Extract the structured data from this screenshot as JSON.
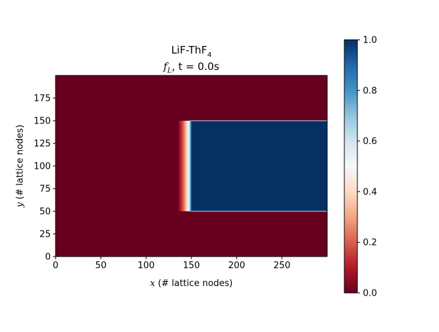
{
  "chart_data": {
    "type": "heatmap",
    "title_line1": {
      "text": "LiF-ThF",
      "subscript": "4"
    },
    "title_line2": {
      "var": "f",
      "var_subscript": "L",
      "rest": ", t = 0.0s"
    },
    "xlabel": {
      "var": "x",
      "rest": " (# lattice nodes)"
    },
    "ylabel": {
      "var": "y",
      "rest": " (# lattice nodes)"
    },
    "xlim": [
      0,
      300
    ],
    "ylim": [
      0,
      200
    ],
    "x_ticks": [
      "0",
      "50",
      "100",
      "150",
      "200",
      "250"
    ],
    "y_ticks": [
      "0",
      "25",
      "50",
      "75",
      "100",
      "125",
      "150",
      "175"
    ],
    "colorbar": {
      "colormap": "RdBu",
      "range": [
        0.0,
        1.0
      ],
      "ticks": [
        "0.0",
        "0.2",
        "0.4",
        "0.6",
        "0.8",
        "1.0"
      ]
    },
    "background_value": 0.0,
    "liquid_region": {
      "x": [
        148,
        300
      ],
      "y": [
        50,
        150
      ],
      "value": 1.0
    },
    "interface_band": {
      "x": [
        135,
        150
      ],
      "y": [
        50,
        150
      ],
      "profile": "smooth 0 to 1"
    },
    "colors": {
      "low": "#67001f",
      "high": "#053061",
      "mid": "#f7f7f7"
    }
  }
}
